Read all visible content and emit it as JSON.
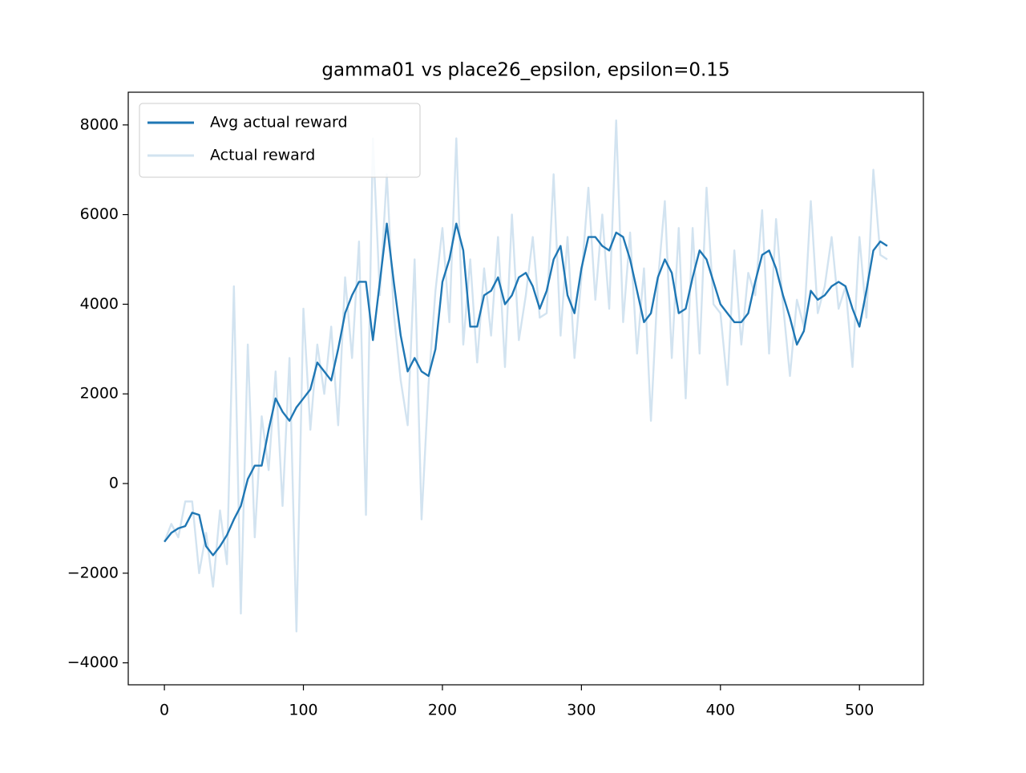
{
  "chart_data": {
    "type": "line",
    "title": "gamma01 vs place26_epsilon, epsilon=0.15",
    "x": [
      0,
      5,
      10,
      15,
      20,
      25,
      30,
      35,
      40,
      45,
      50,
      55,
      60,
      65,
      70,
      75,
      80,
      85,
      90,
      95,
      100,
      105,
      110,
      115,
      120,
      125,
      130,
      135,
      140,
      145,
      150,
      155,
      160,
      165,
      170,
      175,
      180,
      185,
      190,
      195,
      200,
      205,
      210,
      215,
      220,
      225,
      230,
      235,
      240,
      245,
      250,
      255,
      260,
      265,
      270,
      275,
      280,
      285,
      290,
      295,
      300,
      305,
      310,
      315,
      320,
      325,
      330,
      335,
      340,
      345,
      350,
      355,
      360,
      365,
      370,
      375,
      380,
      385,
      390,
      395,
      400,
      405,
      410,
      415,
      420,
      425,
      430,
      435,
      440,
      445,
      450,
      455,
      460,
      465,
      470,
      475,
      480,
      485,
      490,
      495,
      500,
      505,
      510,
      515,
      520
    ],
    "series": [
      {
        "name": "Actual reward",
        "color": "#d2e3f0",
        "values": [
          -1300,
          -900,
          -1200,
          -400,
          -400,
          -2000,
          -1100,
          -2300,
          -600,
          -1800,
          4400,
          -2900,
          3100,
          -1200,
          1500,
          300,
          2500,
          -500,
          2800,
          -3300,
          3900,
          1200,
          3100,
          2000,
          3500,
          1300,
          4600,
          2800,
          5400,
          -700,
          7700,
          4200,
          6900,
          3800,
          2300,
          1300,
          5000,
          -800,
          2200,
          4300,
          5700,
          3600,
          7700,
          3100,
          5000,
          2700,
          4800,
          3300,
          5500,
          2600,
          6000,
          3200,
          4200,
          5500,
          3700,
          3800,
          6900,
          3300,
          5500,
          2800,
          4600,
          6600,
          4100,
          6000,
          3900,
          8100,
          3600,
          5600,
          2900,
          4800,
          1400,
          4500,
          6300,
          2800,
          5700,
          1900,
          5700,
          2900,
          6600,
          4000,
          3800,
          2200,
          5200,
          3100,
          4700,
          4200,
          6100,
          2900,
          5900,
          4000,
          2400,
          4100,
          3500,
          6300,
          3800,
          4400,
          5500,
          3900,
          4400,
          2600,
          5500,
          3700,
          7000,
          5100,
          5000
        ]
      },
      {
        "name": "Avg actual reward",
        "color": "#1f77b4",
        "values": [
          -1300,
          -1100,
          -1000,
          -950,
          -650,
          -700,
          -1400,
          -1600,
          -1400,
          -1150,
          -800,
          -500,
          100,
          400,
          400,
          1200,
          1900,
          1600,
          1400,
          1700,
          1900,
          2100,
          2700,
          2500,
          2300,
          3000,
          3800,
          4200,
          4500,
          4500,
          3200,
          4500,
          5800,
          4500,
          3300,
          2500,
          2800,
          2500,
          2400,
          3000,
          4500,
          5000,
          5800,
          5200,
          3500,
          3500,
          4200,
          4300,
          4600,
          4000,
          4200,
          4600,
          4700,
          4400,
          3900,
          4300,
          5000,
          5300,
          4200,
          3800,
          4800,
          5500,
          5500,
          5300,
          5200,
          5600,
          5500,
          5000,
          4300,
          3600,
          3800,
          4600,
          5000,
          4700,
          3800,
          3900,
          4600,
          5200,
          5000,
          4500,
          4000,
          3800,
          3600,
          3600,
          3800,
          4500,
          5100,
          5200,
          4800,
          4200,
          3700,
          3100,
          3400,
          4300,
          4100,
          4200,
          4400,
          4500,
          4400,
          3900,
          3500,
          4300,
          5200,
          5400,
          5300
        ]
      }
    ],
    "xlim": [
      -26,
      546
    ],
    "xticks": [
      0,
      100,
      200,
      300,
      400,
      500
    ],
    "ylim": [
      -4490,
      8730
    ],
    "yticks": [
      {
        "value": -4000,
        "label": "−4000"
      },
      {
        "value": -2000,
        "label": "−2000"
      },
      0,
      2000,
      4000,
      6000,
      8000
    ],
    "legend": "upper left",
    "legend_order": [
      1,
      0
    ]
  }
}
